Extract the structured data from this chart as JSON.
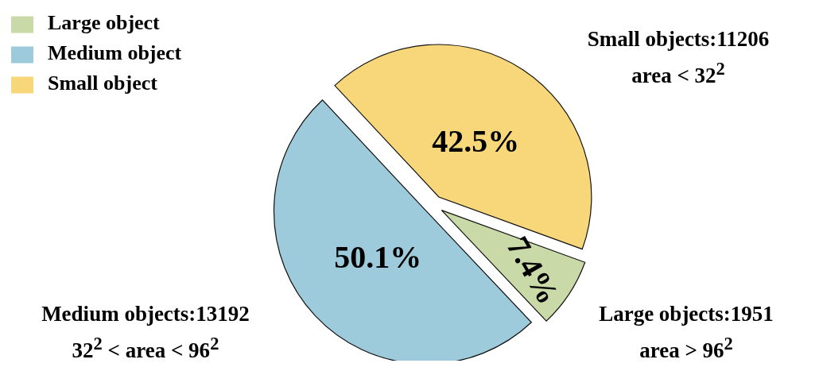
{
  "chart_data": {
    "type": "pie",
    "categories": [
      "Large object",
      "Medium object",
      "Small object"
    ],
    "values": [
      7.4,
      50.1,
      42.5
    ],
    "colors": [
      "#c9d9a8",
      "#9ecbdb",
      "#f8d77a"
    ],
    "value_labels": [
      "7.4%",
      "50.1%",
      "42.5%"
    ],
    "legend": "top left",
    "annotations": [
      "Large objects:1951\narea > 96$^{2}$",
      "Medium objects:13192\n32$^{2}$ < area < 96$^{2}$",
      "Small objects:11206\narea < 32$^{2}$"
    ]
  }
}
